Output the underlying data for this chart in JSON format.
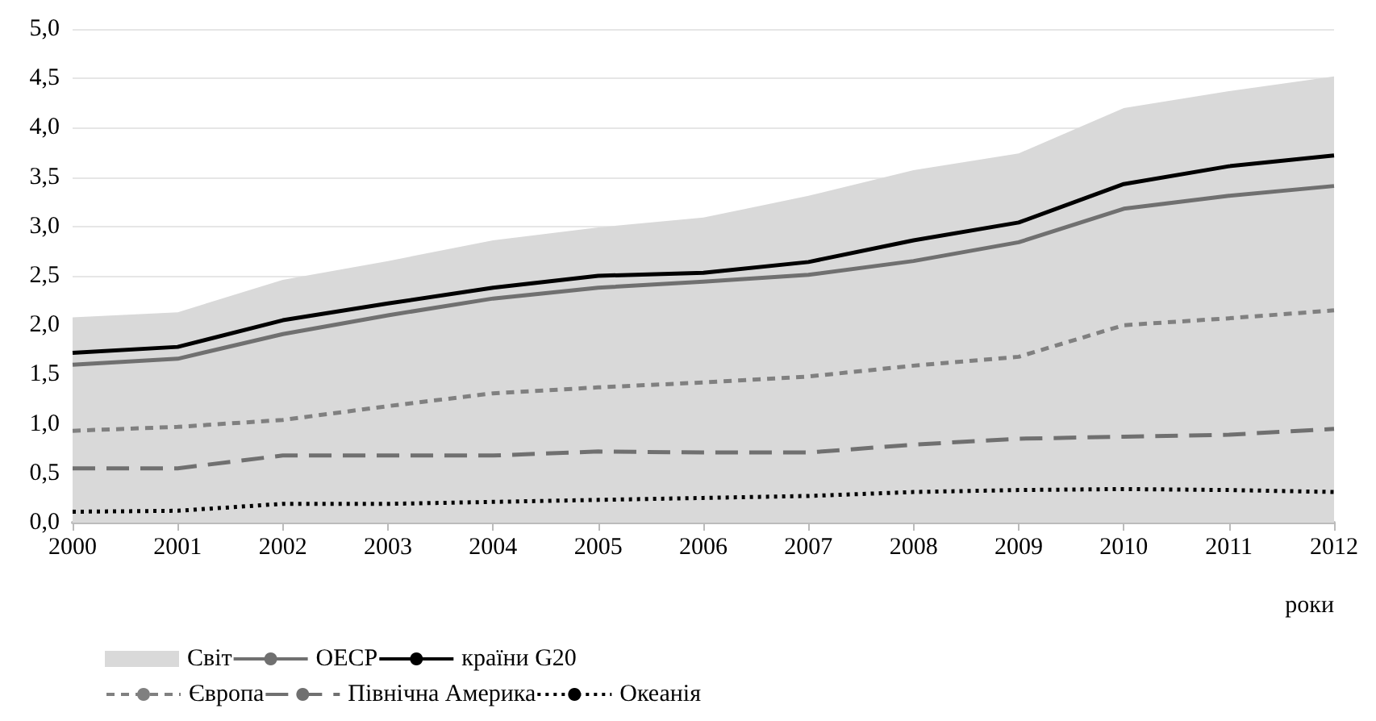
{
  "chart_data": {
    "type": "line",
    "xlabel": "роки",
    "categories": [
      "2000",
      "2001",
      "2002",
      "2003",
      "2004",
      "2005",
      "2006",
      "2007",
      "2008",
      "2009",
      "2010",
      "2011",
      "2012"
    ],
    "ylim": [
      0,
      5
    ],
    "yticks": [
      {
        "value": 0,
        "label": "0,0"
      },
      {
        "value": 0.5,
        "label": "0,5"
      },
      {
        "value": 1,
        "label": "1,0"
      },
      {
        "value": 1.5,
        "label": "1,5"
      },
      {
        "value": 2,
        "label": "2,0"
      },
      {
        "value": 2.5,
        "label": "2,5"
      },
      {
        "value": 3,
        "label": "3,0"
      },
      {
        "value": 3.5,
        "label": "3,5"
      },
      {
        "value": 4,
        "label": "4,0"
      },
      {
        "value": 4.5,
        "label": "4,5"
      },
      {
        "value": 5,
        "label": "5,0"
      }
    ],
    "grid": "y",
    "legend": "bottom",
    "marker": "none",
    "series": [
      {
        "name": "Світ",
        "type": "area",
        "color": "#d9d9d9",
        "values": [
          2.08,
          2.13,
          2.46,
          2.65,
          2.86,
          2.99,
          3.09,
          3.31,
          3.57,
          3.74,
          4.2,
          4.37,
          4.52
        ]
      },
      {
        "name": "ОЕСР",
        "color": "#707070",
        "line_style": "solid",
        "values": [
          1.6,
          1.66,
          1.91,
          2.1,
          2.27,
          2.38,
          2.44,
          2.51,
          2.65,
          2.84,
          3.18,
          3.31,
          3.41
        ]
      },
      {
        "name": "країни G20",
        "color": "#000000",
        "line_style": "solid",
        "values": [
          1.72,
          1.78,
          2.05,
          2.22,
          2.38,
          2.5,
          2.53,
          2.64,
          2.86,
          3.04,
          3.43,
          3.61,
          3.72
        ]
      },
      {
        "name": "Європа",
        "color": "#808080",
        "line_style": "dashed",
        "values": [
          0.93,
          0.97,
          1.04,
          1.18,
          1.31,
          1.37,
          1.42,
          1.48,
          1.59,
          1.68,
          2.0,
          2.07,
          2.15
        ]
      },
      {
        "name": "Північна Америка",
        "color": "#707070",
        "line_style": "longdash",
        "values": [
          0.55,
          0.55,
          0.68,
          0.68,
          0.68,
          0.72,
          0.71,
          0.71,
          0.79,
          0.85,
          0.87,
          0.89,
          0.95
        ]
      },
      {
        "name": "Океанія",
        "color": "#000000",
        "line_style": "dotted",
        "values": [
          0.11,
          0.12,
          0.19,
          0.19,
          0.21,
          0.23,
          0.25,
          0.27,
          0.31,
          0.33,
          0.34,
          0.33,
          0.31
        ]
      }
    ]
  }
}
